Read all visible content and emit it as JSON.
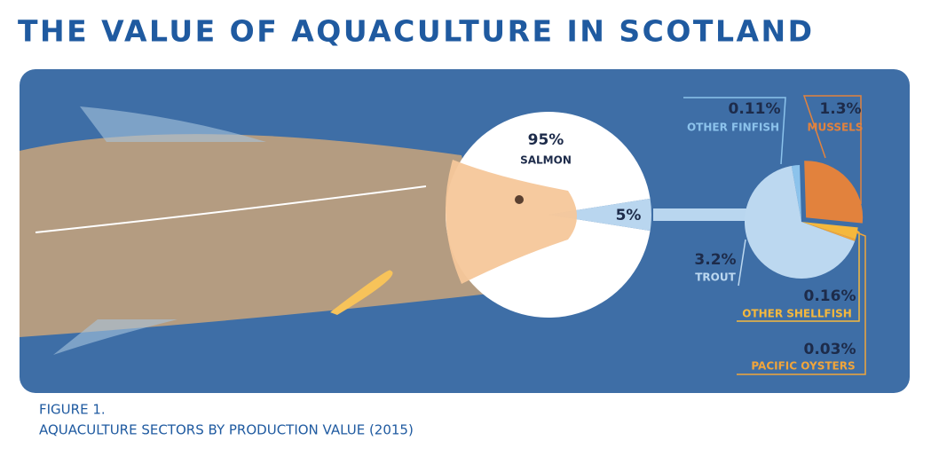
{
  "chart_data": [
    {
      "type": "pie",
      "title": "THE VALUE OF AQUACULTURE IN SCOTLAND",
      "figure_label": "FIGURE 1.",
      "caption": "AQUACULTURE SECTORS BY PRODUCTION VALUE (2015)",
      "categories": [
        "SALMON",
        null
      ],
      "values": [
        95,
        5
      ],
      "value_labels": [
        "95%",
        "5%"
      ],
      "colors": [
        "#ffffff",
        "#b9d6ef"
      ]
    },
    {
      "type": "pie",
      "categories": [
        "OTHER FINFISH",
        "MUSSELS",
        "OTHER SHELLFISH",
        "PACIFIC OYSTERS",
        "TROUT"
      ],
      "values": [
        0.11,
        1.3,
        0.16,
        0.03,
        3.2
      ],
      "value_labels": [
        "0.11%",
        "1.3%",
        "0.16%",
        "0.03%",
        "3.2%"
      ],
      "colors": [
        "#8cc3ec",
        "#e2823d",
        "#f5b83d",
        "#f1a53a",
        "#bcd8f0"
      ]
    }
  ]
}
